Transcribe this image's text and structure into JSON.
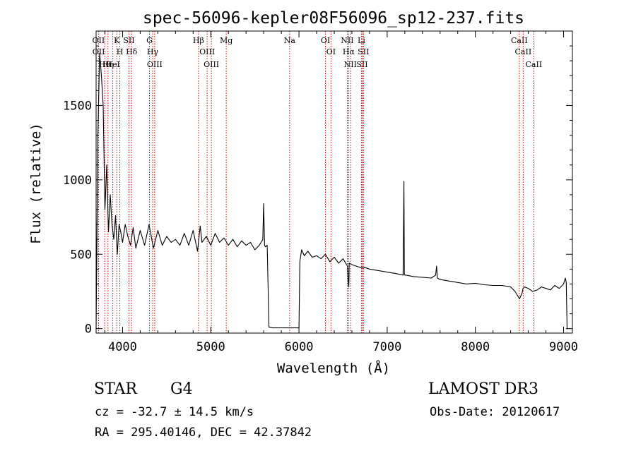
{
  "chart_data": {
    "type": "line",
    "title": "spec-56096-kepler08F56096_sp12-237.fits",
    "xlabel": "Wavelength (Å)",
    "ylabel": "Flux (relative)",
    "xlim": [
      3700,
      9100
    ],
    "ylim": [
      -30,
      2000
    ],
    "x_ticks": [
      4000,
      5000,
      6000,
      7000,
      8000,
      9000
    ],
    "y_ticks": [
      0,
      500,
      1000,
      1500
    ],
    "x_tick_labels": [
      "4000",
      "5000",
      "6000",
      "7000",
      "8000",
      "9000"
    ],
    "y_tick_labels": [
      "0",
      "500",
      "1000",
      "1500"
    ],
    "series": [
      {
        "name": "flux",
        "color": "#000000",
        "x": [
          3700,
          3720,
          3740,
          3760,
          3780,
          3800,
          3820,
          3840,
          3860,
          3880,
          3900,
          3920,
          3940,
          3960,
          3980,
          4000,
          4030,
          4060,
          4090,
          4120,
          4150,
          4200,
          4250,
          4300,
          4350,
          4400,
          4450,
          4500,
          4550,
          4600,
          4650,
          4700,
          4750,
          4800,
          4850,
          4880,
          4900,
          4950,
          5000,
          5050,
          5100,
          5150,
          5200,
          5250,
          5300,
          5350,
          5400,
          5450,
          5500,
          5550,
          5590,
          5600,
          5610,
          5620,
          5640,
          5660,
          5700,
          5800,
          5900,
          6000,
          6010,
          6030,
          6060,
          6100,
          6150,
          6200,
          6250,
          6300,
          6350,
          6400,
          6450,
          6500,
          6550,
          6560,
          6565,
          6570,
          6600,
          6650,
          6700,
          6750,
          6800,
          6900,
          7000,
          7100,
          7180,
          7190,
          7195,
          7200,
          7210,
          7300,
          7400,
          7500,
          7550,
          7560,
          7570,
          7600,
          7700,
          7800,
          7900,
          8000,
          8100,
          8200,
          8300,
          8400,
          8450,
          8500,
          8530,
          8540,
          8560,
          8600,
          8650,
          8700,
          8750,
          8800,
          8850,
          8900,
          8950,
          9000,
          9020,
          9030,
          9040,
          9050
        ],
        "y": [
          0,
          1300,
          1850,
          1700,
          1500,
          800,
          1100,
          650,
          900,
          700,
          600,
          760,
          500,
          700,
          650,
          580,
          700,
          620,
          560,
          680,
          540,
          660,
          560,
          700,
          540,
          660,
          560,
          620,
          580,
          600,
          560,
          640,
          560,
          660,
          520,
          690,
          580,
          620,
          560,
          640,
          580,
          610,
          560,
          600,
          550,
          590,
          560,
          580,
          530,
          560,
          600,
          840,
          560,
          550,
          560,
          10,
          5,
          5,
          5,
          5,
          450,
          530,
          490,
          520,
          480,
          490,
          470,
          500,
          450,
          480,
          440,
          470,
          420,
          300,
          280,
          440,
          430,
          420,
          410,
          410,
          400,
          390,
          380,
          370,
          360,
          990,
          360,
          360,
          360,
          350,
          345,
          340,
          360,
          420,
          340,
          330,
          320,
          310,
          300,
          305,
          295,
          290,
          290,
          280,
          250,
          200,
          240,
          270,
          280,
          270,
          250,
          260,
          280,
          270,
          260,
          290,
          270,
          300,
          340,
          310,
          0,
          0
        ]
      }
    ],
    "line_markers": [
      {
        "label": "Hθ",
        "wavelength": 3798
      },
      {
        "label": "OII",
        "wavelength": 3727
      },
      {
        "label": "OII",
        "wavelength": 3729
      },
      {
        "label": "Hη",
        "wavelength": 3835
      },
      {
        "label": "K",
        "wavelength": 3934
      },
      {
        "label": "HeI",
        "wavelength": 3889
      },
      {
        "label": "H",
        "wavelength": 3969
      },
      {
        "label": "Hδ",
        "wavelength": 4102
      },
      {
        "label": "SII",
        "wavelength": 4072
      },
      {
        "label": "OIII",
        "wavelength": 4364
      },
      {
        "label": "Hγ",
        "wavelength": 4341
      },
      {
        "label": "G",
        "wavelength": 4305
      },
      {
        "label": "Hβ",
        "wavelength": 4861
      },
      {
        "label": "OIII",
        "wavelength": 5007
      },
      {
        "label": "OIII",
        "wavelength": 4959
      },
      {
        "label": "Mg",
        "wavelength": 5175
      },
      {
        "label": "Na",
        "wavelength": 5894
      },
      {
        "label": "OI",
        "wavelength": 6300
      },
      {
        "label": "OI",
        "wavelength": 6363
      },
      {
        "label": "Hα",
        "wavelength": 6563
      },
      {
        "label": "NII",
        "wavelength": 6548
      },
      {
        "label": "NII",
        "wavelength": 6583
      },
      {
        "label": "SII",
        "wavelength": 6716
      },
      {
        "label": "SII",
        "wavelength": 6731
      },
      {
        "label": "Li",
        "wavelength": 6708
      },
      {
        "label": "CaII",
        "wavelength": 8498
      },
      {
        "label": "CaII",
        "wavelength": 8542
      },
      {
        "label": "CaII",
        "wavelength": 8662
      }
    ],
    "marker_color": "#cc0000"
  },
  "info": {
    "class": "STAR",
    "subclass": "G4",
    "survey": "LAMOST DR3",
    "redshift": "cz = -32.7 ± 14.5 km/s",
    "obs_date": "Obs-Date: 20120617",
    "coords": "RA = 295.40146, DEC =  42.37842"
  }
}
